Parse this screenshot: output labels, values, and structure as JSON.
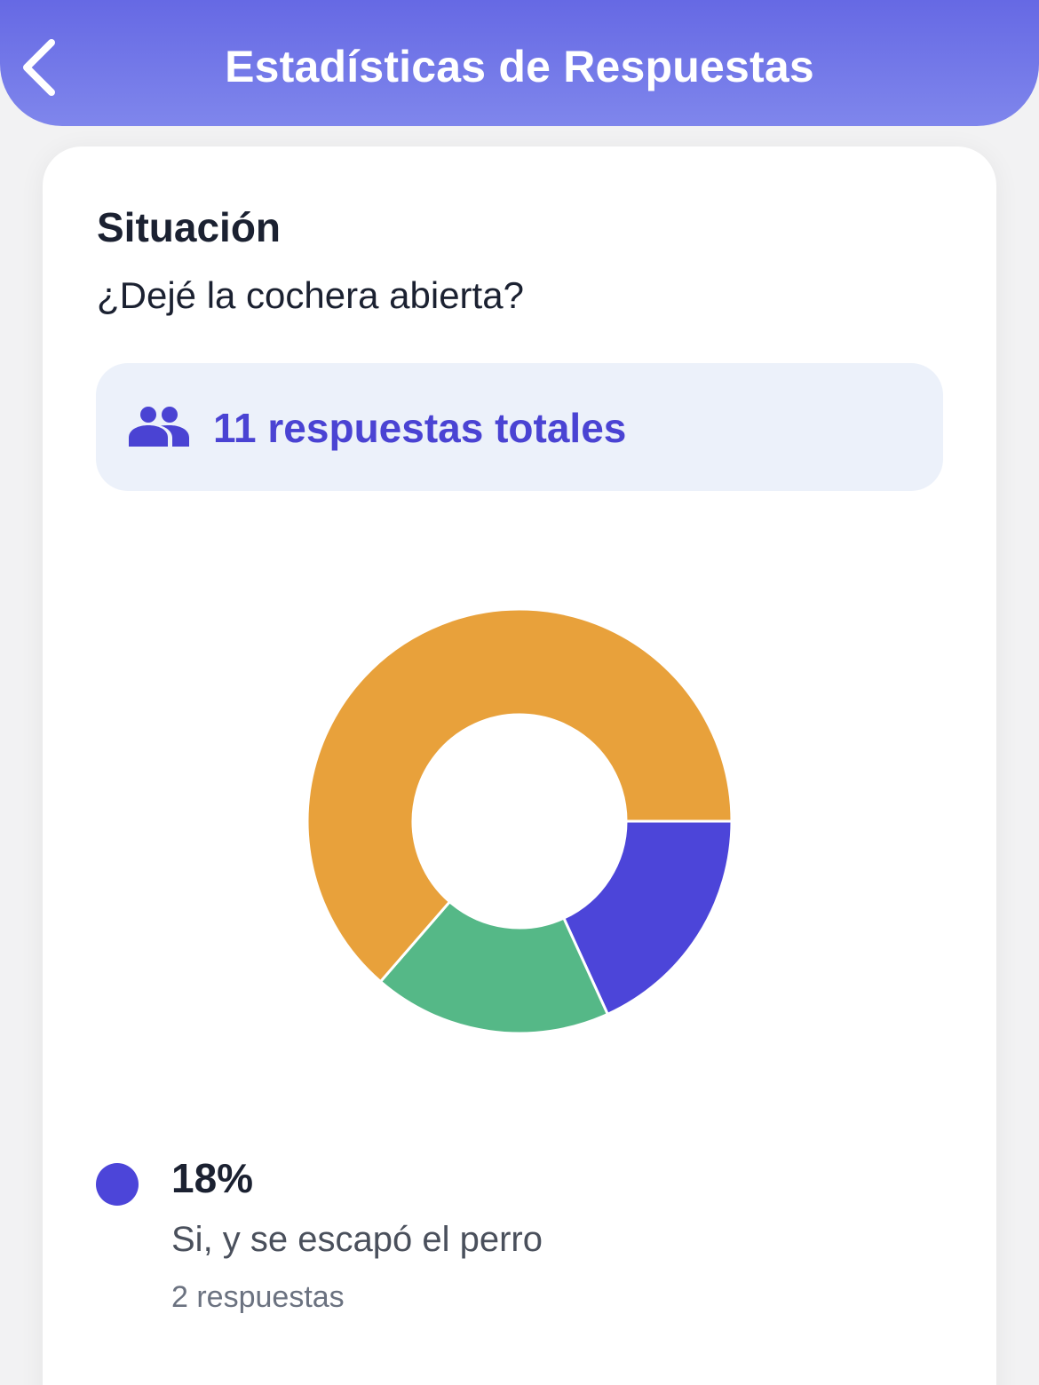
{
  "header": {
    "title": "Estadísticas de Respuestas",
    "back_icon": "chevron-left-icon"
  },
  "card": {
    "title": "Situación",
    "question": "¿Dejé la cochera abierta?",
    "total": {
      "icon": "people-icon",
      "text": "11 respuestas totales"
    }
  },
  "colors": {
    "header_start": "#6669e4",
    "header_end": "#7f86ec",
    "accent": "#4a43d3",
    "blue": "#4c45d9",
    "green": "#55b887",
    "orange": "#e8a13b"
  },
  "legend": [
    {
      "percent": "18%",
      "label": "Si, y se escapó el perro",
      "count": "2 respuestas",
      "color": "#4c45d9"
    }
  ],
  "chart_data": {
    "type": "pie",
    "variant": "donut",
    "title": "",
    "total_responses": 11,
    "start_angle": "3 o'clock, clockwise",
    "categories": [
      "Si, y se escapó el perro",
      "(segment 2)",
      "(segment 3)"
    ],
    "values": [
      2,
      2,
      7
    ],
    "percentages": [
      18,
      18,
      64
    ],
    "colors": [
      "#4c45d9",
      "#55b887",
      "#e8a13b"
    ],
    "legend_position": "bottom"
  }
}
